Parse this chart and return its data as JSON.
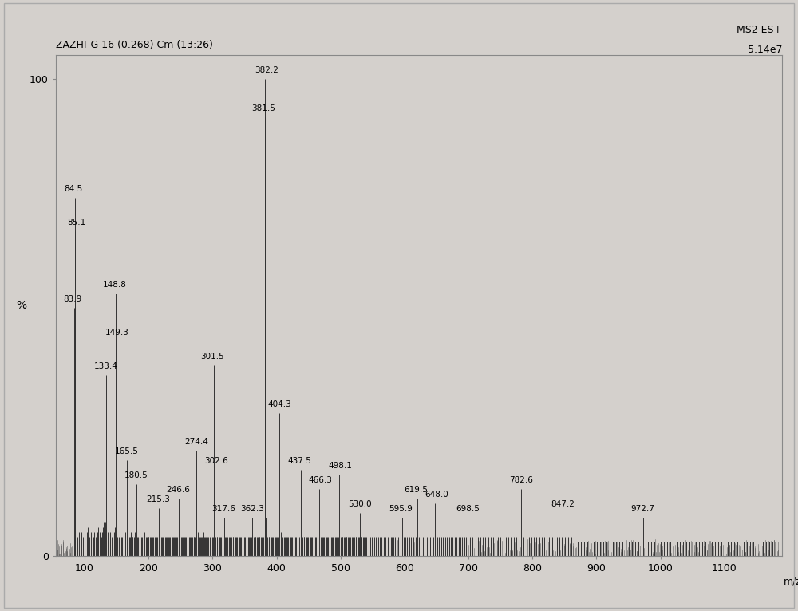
{
  "title_left": "ZAZHI-G 16 (0.268) Cm (13:26)",
  "title_right_line1": "MS2 ES+",
  "title_right_line2": "5.14e7",
  "xlabel": "m/z",
  "ylabel": "%",
  "xlim": [
    55,
    1190
  ],
  "ylim": [
    0,
    105
  ],
  "xticks": [
    100,
    200,
    300,
    400,
    500,
    600,
    700,
    800,
    900,
    1000,
    1100
  ],
  "yticks": [
    0,
    100
  ],
  "background_color": "#d4d0cc",
  "plot_bg_color": "#d4d0cc",
  "line_color": "#333333",
  "peaks": [
    [
      83.9,
      52
    ],
    [
      84.5,
      75
    ],
    [
      85.1,
      68
    ],
    [
      88.3,
      4
    ],
    [
      91.2,
      5
    ],
    [
      93.5,
      4
    ],
    [
      95.3,
      5
    ],
    [
      97.2,
      4
    ],
    [
      100.2,
      7
    ],
    [
      103.3,
      5
    ],
    [
      105.3,
      6
    ],
    [
      107.5,
      4
    ],
    [
      110.5,
      5
    ],
    [
      113.2,
      4
    ],
    [
      115.2,
      5
    ],
    [
      117.3,
      4
    ],
    [
      119.5,
      5
    ],
    [
      121.4,
      6
    ],
    [
      123.5,
      5
    ],
    [
      125.6,
      4
    ],
    [
      127.3,
      5
    ],
    [
      129.2,
      6
    ],
    [
      130.2,
      7
    ],
    [
      131.5,
      5
    ],
    [
      132.5,
      7
    ],
    [
      133.4,
      38
    ],
    [
      135.6,
      5
    ],
    [
      137.3,
      4
    ],
    [
      139.2,
      4
    ],
    [
      140.2,
      5
    ],
    [
      142.5,
      4
    ],
    [
      143.5,
      4
    ],
    [
      145.7,
      5
    ],
    [
      147.2,
      6
    ],
    [
      148.8,
      55
    ],
    [
      149.3,
      45
    ],
    [
      151.5,
      4
    ],
    [
      153.2,
      4
    ],
    [
      155.2,
      5
    ],
    [
      157.3,
      4
    ],
    [
      158.3,
      4
    ],
    [
      160.4,
      5
    ],
    [
      161.4,
      5
    ],
    [
      163.2,
      5
    ],
    [
      165.5,
      20
    ],
    [
      167.3,
      4
    ],
    [
      169.4,
      4
    ],
    [
      170.4,
      4
    ],
    [
      172.5,
      5
    ],
    [
      174.3,
      4
    ],
    [
      175.3,
      4
    ],
    [
      177.2,
      4
    ],
    [
      178.2,
      5
    ],
    [
      179.4,
      4
    ],
    [
      180.5,
      15
    ],
    [
      182.4,
      4
    ],
    [
      183.4,
      4
    ],
    [
      185.5,
      4
    ],
    [
      186.5,
      4
    ],
    [
      188.3,
      4
    ],
    [
      190.3,
      4
    ],
    [
      192.2,
      4
    ],
    [
      193.2,
      5
    ],
    [
      195.4,
      4
    ],
    [
      197.5,
      4
    ],
    [
      199.2,
      4
    ],
    [
      200.2,
      4
    ],
    [
      202.4,
      4
    ],
    [
      203.4,
      4
    ],
    [
      205.3,
      4
    ],
    [
      207.3,
      4
    ],
    [
      209.5,
      4
    ],
    [
      210.5,
      4
    ],
    [
      212.2,
      4
    ],
    [
      213.2,
      4
    ],
    [
      215.3,
      10
    ],
    [
      217.5,
      4
    ],
    [
      219.3,
      4
    ],
    [
      220.3,
      4
    ],
    [
      222.4,
      4
    ],
    [
      223.4,
      4
    ],
    [
      225.6,
      4
    ],
    [
      227.3,
      4
    ],
    [
      228.3,
      4
    ],
    [
      230.5,
      4
    ],
    [
      232.4,
      4
    ],
    [
      233.4,
      4
    ],
    [
      235.5,
      4
    ],
    [
      236.5,
      4
    ],
    [
      238.4,
      4
    ],
    [
      239.3,
      4
    ],
    [
      240.3,
      4
    ],
    [
      242.5,
      4
    ],
    [
      243.4,
      4
    ],
    [
      244.4,
      4
    ],
    [
      246.6,
      12
    ],
    [
      248.5,
      4
    ],
    [
      250.3,
      4
    ],
    [
      252.4,
      4
    ],
    [
      253.4,
      4
    ],
    [
      255.5,
      4
    ],
    [
      256.5,
      4
    ],
    [
      258.3,
      4
    ],
    [
      260.4,
      4
    ],
    [
      261.4,
      4
    ],
    [
      263.5,
      4
    ],
    [
      264.3,
      4
    ],
    [
      265.3,
      4
    ],
    [
      267.4,
      4
    ],
    [
      268.4,
      4
    ],
    [
      270.5,
      4
    ],
    [
      271.3,
      4
    ],
    [
      272.3,
      4
    ],
    [
      274.4,
      22
    ],
    [
      276.5,
      5
    ],
    [
      278.3,
      4
    ],
    [
      279.4,
      4
    ],
    [
      280.4,
      4
    ],
    [
      282.5,
      4
    ],
    [
      283.3,
      4
    ],
    [
      285.3,
      5
    ],
    [
      287.4,
      4
    ],
    [
      288.4,
      4
    ],
    [
      289.5,
      4
    ],
    [
      290.5,
      4
    ],
    [
      292.3,
      4
    ],
    [
      293.3,
      4
    ],
    [
      295.5,
      4
    ],
    [
      296.4,
      4
    ],
    [
      297.4,
      4
    ],
    [
      299.3,
      4
    ],
    [
      300.4,
      4
    ],
    [
      301.5,
      40
    ],
    [
      302.6,
      18
    ],
    [
      304.5,
      4
    ],
    [
      306.4,
      4
    ],
    [
      307.4,
      4
    ],
    [
      309.5,
      4
    ],
    [
      310.5,
      4
    ],
    [
      312.3,
      4
    ],
    [
      313.4,
      4
    ],
    [
      315.3,
      4
    ],
    [
      317.6,
      8
    ],
    [
      319.5,
      4
    ],
    [
      320.5,
      4
    ],
    [
      322.4,
      4
    ],
    [
      323.4,
      4
    ],
    [
      325.5,
      4
    ],
    [
      326.5,
      4
    ],
    [
      328.3,
      4
    ],
    [
      329.3,
      4
    ],
    [
      331.4,
      4
    ],
    [
      332.4,
      4
    ],
    [
      334.5,
      4
    ],
    [
      335.5,
      4
    ],
    [
      337.3,
      4
    ],
    [
      338.3,
      4
    ],
    [
      340.4,
      4
    ],
    [
      341.4,
      4
    ],
    [
      343.5,
      4
    ],
    [
      344.5,
      4
    ],
    [
      346.3,
      4
    ],
    [
      347.3,
      4
    ],
    [
      349.4,
      4
    ],
    [
      350.4,
      4
    ],
    [
      352.5,
      4
    ],
    [
      353.5,
      4
    ],
    [
      355.3,
      4
    ],
    [
      356.3,
      4
    ],
    [
      358.4,
      4
    ],
    [
      359.5,
      4
    ],
    [
      360.5,
      4
    ],
    [
      362.3,
      8
    ],
    [
      364.5,
      4
    ],
    [
      366.3,
      4
    ],
    [
      367.3,
      4
    ],
    [
      369.4,
      4
    ],
    [
      370.4,
      4
    ],
    [
      372.5,
      4
    ],
    [
      373.5,
      4
    ],
    [
      375.3,
      4
    ],
    [
      376.3,
      4
    ],
    [
      378.5,
      4
    ],
    [
      379.3,
      4
    ],
    [
      381.5,
      92
    ],
    [
      382.2,
      100
    ],
    [
      383.5,
      8
    ],
    [
      385.3,
      4
    ],
    [
      387.4,
      4
    ],
    [
      388.4,
      4
    ],
    [
      390.5,
      4
    ],
    [
      391.5,
      4
    ],
    [
      393.3,
      4
    ],
    [
      394.3,
      4
    ],
    [
      396.4,
      4
    ],
    [
      397.4,
      4
    ],
    [
      399.5,
      4
    ],
    [
      400.5,
      4
    ],
    [
      402.3,
      4
    ],
    [
      404.3,
      30
    ],
    [
      406.5,
      5
    ],
    [
      408.3,
      4
    ],
    [
      409.3,
      4
    ],
    [
      411.4,
      4
    ],
    [
      412.4,
      4
    ],
    [
      414.5,
      4
    ],
    [
      415.5,
      4
    ],
    [
      417.3,
      4
    ],
    [
      418.3,
      4
    ],
    [
      420.4,
      4
    ],
    [
      421.4,
      4
    ],
    [
      423.5,
      4
    ],
    [
      424.5,
      4
    ],
    [
      426.3,
      4
    ],
    [
      427.3,
      4
    ],
    [
      429.4,
      4
    ],
    [
      430.4,
      4
    ],
    [
      432.5,
      4
    ],
    [
      433.5,
      4
    ],
    [
      435.3,
      4
    ],
    [
      437.5,
      18
    ],
    [
      439.3,
      4
    ],
    [
      440.3,
      4
    ],
    [
      442.4,
      4
    ],
    [
      443.4,
      4
    ],
    [
      445.5,
      4
    ],
    [
      446.5,
      4
    ],
    [
      448.3,
      4
    ],
    [
      449.3,
      4
    ],
    [
      451.4,
      4
    ],
    [
      452.4,
      4
    ],
    [
      454.5,
      4
    ],
    [
      455.5,
      4
    ],
    [
      457.3,
      4
    ],
    [
      458.3,
      4
    ],
    [
      460.4,
      4
    ],
    [
      461.4,
      4
    ],
    [
      463.5,
      4
    ],
    [
      466.3,
      14
    ],
    [
      468.5,
      4
    ],
    [
      470.3,
      4
    ],
    [
      471.3,
      4
    ],
    [
      473.4,
      4
    ],
    [
      474.4,
      4
    ],
    [
      476.5,
      4
    ],
    [
      477.5,
      4
    ],
    [
      479.3,
      4
    ],
    [
      480.3,
      4
    ],
    [
      482.4,
      4
    ],
    [
      483.4,
      4
    ],
    [
      485.5,
      4
    ],
    [
      486.5,
      4
    ],
    [
      488.3,
      4
    ],
    [
      489.3,
      4
    ],
    [
      491.4,
      4
    ],
    [
      492.4,
      4
    ],
    [
      494.5,
      4
    ],
    [
      496.3,
      4
    ],
    [
      498.1,
      17
    ],
    [
      500.5,
      4
    ],
    [
      502.3,
      4
    ],
    [
      503.3,
      4
    ],
    [
      505.4,
      4
    ],
    [
      506.4,
      4
    ],
    [
      508.5,
      4
    ],
    [
      509.5,
      4
    ],
    [
      511.3,
      4
    ],
    [
      512.3,
      4
    ],
    [
      514.4,
      4
    ],
    [
      515.4,
      4
    ],
    [
      517.5,
      4
    ],
    [
      518.5,
      4
    ],
    [
      520.3,
      4
    ],
    [
      521.3,
      4
    ],
    [
      523.4,
      4
    ],
    [
      524.4,
      4
    ],
    [
      526.5,
      4
    ],
    [
      527.5,
      4
    ],
    [
      529.3,
      4
    ],
    [
      530.0,
      9
    ],
    [
      532.3,
      4
    ],
    [
      533.3,
      4
    ],
    [
      535.4,
      4
    ],
    [
      536.4,
      4
    ],
    [
      538.5,
      4
    ],
    [
      540.3,
      4
    ],
    [
      543.3,
      4
    ],
    [
      546.4,
      4
    ],
    [
      549.5,
      4
    ],
    [
      552.3,
      4
    ],
    [
      555.4,
      4
    ],
    [
      558.5,
      4
    ],
    [
      561.3,
      4
    ],
    [
      564.4,
      4
    ],
    [
      567.5,
      4
    ],
    [
      570.3,
      4
    ],
    [
      573.4,
      4
    ],
    [
      575.5,
      4
    ],
    [
      578.3,
      4
    ],
    [
      580.4,
      4
    ],
    [
      582.5,
      4
    ],
    [
      585.3,
      4
    ],
    [
      587.4,
      4
    ],
    [
      590.5,
      4
    ],
    [
      593.3,
      4
    ],
    [
      595.9,
      8
    ],
    [
      598.5,
      4
    ],
    [
      601.3,
      4
    ],
    [
      604.4,
      4
    ],
    [
      607.5,
      4
    ],
    [
      610.3,
      4
    ],
    [
      613.4,
      4
    ],
    [
      617.5,
      4
    ],
    [
      619.5,
      12
    ],
    [
      622.3,
      4
    ],
    [
      625.4,
      4
    ],
    [
      628.5,
      4
    ],
    [
      631.3,
      4
    ],
    [
      634.4,
      4
    ],
    [
      637.5,
      4
    ],
    [
      640.3,
      4
    ],
    [
      643.4,
      4
    ],
    [
      645.4,
      4
    ],
    [
      648.0,
      11
    ],
    [
      651.5,
      4
    ],
    [
      654.3,
      4
    ],
    [
      657.4,
      4
    ],
    [
      660.5,
      4
    ],
    [
      663.3,
      4
    ],
    [
      666.4,
      4
    ],
    [
      669.5,
      4
    ],
    [
      672.3,
      4
    ],
    [
      675.4,
      4
    ],
    [
      678.5,
      4
    ],
    [
      681.3,
      4
    ],
    [
      684.4,
      4
    ],
    [
      687.5,
      4
    ],
    [
      690.3,
      4
    ],
    [
      693.4,
      4
    ],
    [
      696.5,
      4
    ],
    [
      698.5,
      8
    ],
    [
      702.3,
      4
    ],
    [
      706.4,
      4
    ],
    [
      710.5,
      4
    ],
    [
      714.3,
      4
    ],
    [
      718.4,
      4
    ],
    [
      722.5,
      4
    ],
    [
      726.3,
      4
    ],
    [
      730.4,
      4
    ],
    [
      734.5,
      4
    ],
    [
      738.3,
      4
    ],
    [
      742.4,
      4
    ],
    [
      746.5,
      4
    ],
    [
      750.3,
      4
    ],
    [
      754.4,
      4
    ],
    [
      758.5,
      4
    ],
    [
      762.3,
      4
    ],
    [
      766.4,
      4
    ],
    [
      770.5,
      4
    ],
    [
      774.3,
      4
    ],
    [
      778.4,
      4
    ],
    [
      782.6,
      14
    ],
    [
      786.5,
      4
    ],
    [
      790.3,
      4
    ],
    [
      794.4,
      4
    ],
    [
      798.5,
      4
    ],
    [
      802.3,
      4
    ],
    [
      806.4,
      4
    ],
    [
      810.5,
      4
    ],
    [
      814.3,
      4
    ],
    [
      818.4,
      4
    ],
    [
      822.5,
      4
    ],
    [
      826.3,
      4
    ],
    [
      830.4,
      4
    ],
    [
      834.5,
      4
    ],
    [
      838.3,
      4
    ],
    [
      841.4,
      4
    ],
    [
      845.5,
      4
    ],
    [
      847.2,
      9
    ],
    [
      851.3,
      4
    ],
    [
      855.4,
      4
    ],
    [
      860.5,
      4
    ],
    [
      865.3,
      3
    ],
    [
      870.4,
      3
    ],
    [
      875.5,
      3
    ],
    [
      880.3,
      3
    ],
    [
      885.4,
      3
    ],
    [
      890.5,
      3
    ],
    [
      895.3,
      3
    ],
    [
      900.4,
      3
    ],
    [
      905.5,
      3
    ],
    [
      910.3,
      3
    ],
    [
      915.4,
      3
    ],
    [
      920.5,
      3
    ],
    [
      925.3,
      3
    ],
    [
      930.4,
      3
    ],
    [
      935.5,
      3
    ],
    [
      940.3,
      3
    ],
    [
      945.4,
      3
    ],
    [
      950.5,
      3
    ],
    [
      955.3,
      3
    ],
    [
      960.4,
      3
    ],
    [
      965.5,
      3
    ],
    [
      970.3,
      3
    ],
    [
      972.7,
      8
    ],
    [
      976.5,
      3
    ],
    [
      980.3,
      3
    ],
    [
      985.4,
      3
    ],
    [
      990.5,
      3
    ],
    [
      995.3,
      3
    ],
    [
      1000.4,
      3
    ],
    [
      1005.5,
      3
    ],
    [
      1010.3,
      3
    ],
    [
      1015.4,
      3
    ],
    [
      1020.5,
      3
    ],
    [
      1025.3,
      3
    ],
    [
      1030.4,
      3
    ],
    [
      1035.5,
      3
    ],
    [
      1040.3,
      3
    ],
    [
      1045.4,
      3
    ],
    [
      1050.5,
      3
    ],
    [
      1055.3,
      3
    ],
    [
      1060.4,
      3
    ],
    [
      1065.5,
      3
    ],
    [
      1070.3,
      3
    ],
    [
      1075.4,
      3
    ],
    [
      1080.5,
      3
    ],
    [
      1085.3,
      3
    ],
    [
      1090.4,
      3
    ],
    [
      1095.5,
      3
    ],
    [
      1100.3,
      3
    ],
    [
      1105.4,
      3
    ],
    [
      1110.5,
      3
    ],
    [
      1115.3,
      3
    ],
    [
      1120.4,
      3
    ],
    [
      1125.5,
      3
    ],
    [
      1130.3,
      3
    ],
    [
      1135.4,
      3
    ],
    [
      1140.5,
      3
    ],
    [
      1145.3,
      3
    ],
    [
      1150.4,
      3
    ],
    [
      1155.5,
      3
    ],
    [
      1160.3,
      3
    ],
    [
      1165.4,
      3
    ],
    [
      1170.5,
      3
    ],
    [
      1175.3,
      3
    ],
    [
      1180.4,
      3
    ]
  ],
  "labeled_peaks": [
    [
      83.9,
      52,
      "83.9",
      -3,
      1
    ],
    [
      84.5,
      75,
      "84.5",
      -2,
      1
    ],
    [
      85.1,
      68,
      "85.1",
      2,
      1
    ],
    [
      133.4,
      38,
      "133.4",
      0,
      1
    ],
    [
      148.8,
      55,
      "148.8",
      -2,
      1
    ],
    [
      149.3,
      45,
      "149.3",
      2,
      1
    ],
    [
      165.5,
      20,
      "165.5",
      0,
      1
    ],
    [
      180.5,
      15,
      "180.5",
      0,
      1
    ],
    [
      215.3,
      10,
      "215.3",
      0,
      1
    ],
    [
      246.6,
      12,
      "246.6",
      0,
      1
    ],
    [
      274.4,
      22,
      "274.4",
      0,
      1
    ],
    [
      301.5,
      40,
      "301.5",
      -2,
      1
    ],
    [
      302.6,
      18,
      "302.6",
      3,
      1
    ],
    [
      317.6,
      8,
      "317.6",
      0,
      1
    ],
    [
      362.3,
      8,
      "362.3",
      0,
      1
    ],
    [
      381.5,
      92,
      "381.5",
      -2,
      1
    ],
    [
      382.2,
      100,
      "382.2",
      2,
      1
    ],
    [
      404.3,
      30,
      "404.3",
      0,
      1
    ],
    [
      437.5,
      18,
      "437.5",
      -2,
      1
    ],
    [
      466.3,
      14,
      "466.3",
      2,
      1
    ],
    [
      498.1,
      17,
      "498.1",
      2,
      1
    ],
    [
      530.0,
      9,
      "530.0",
      0,
      1
    ],
    [
      595.9,
      8,
      "595.9",
      -2,
      1
    ],
    [
      619.5,
      12,
      "619.5",
      -2,
      1
    ],
    [
      648.0,
      11,
      "648.0",
      2,
      1
    ],
    [
      698.5,
      8,
      "698.5",
      0,
      1
    ],
    [
      782.6,
      14,
      "782.6",
      0,
      1
    ],
    [
      847.2,
      9,
      "847.2",
      0,
      1
    ],
    [
      972.7,
      8,
      "972.7",
      0,
      1
    ]
  ]
}
